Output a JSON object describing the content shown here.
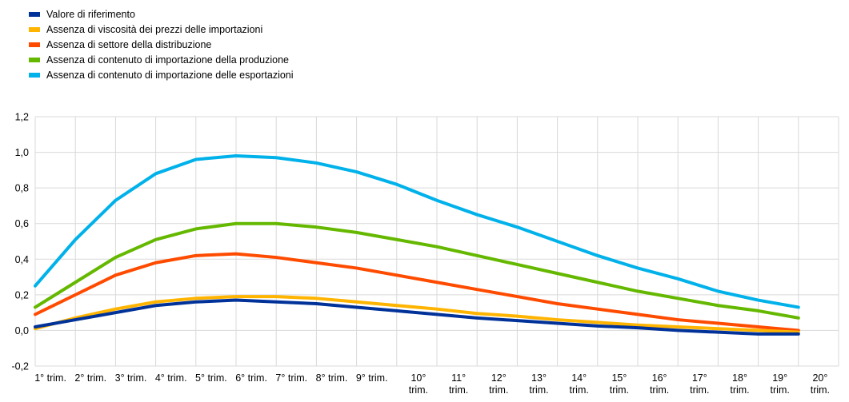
{
  "chart_data": {
    "type": "line",
    "categories": [
      "1° trim.",
      "2° trim.",
      "3° trim.",
      "4° trim.",
      "5° trim.",
      "6° trim.",
      "7° trim.",
      "8° trim.",
      "9° trim.",
      "10° trim.",
      "11° trim.",
      "12° trim.",
      "13° trim.",
      "14° trim.",
      "15° trim.",
      "16° trim.",
      "17° trim.",
      "18° trim.",
      "19° trim.",
      "20° trim."
    ],
    "ylim": [
      -0.2,
      1.2
    ],
    "yticks": [
      "-0,2",
      "0,0",
      "0,2",
      "0,4",
      "0,6",
      "0,8",
      "1,0",
      "1,2"
    ],
    "grid": true,
    "legend_position": "top-left",
    "series": [
      {
        "name": "Valore di riferimento",
        "color": "#003299",
        "values": [
          0.02,
          0.06,
          0.1,
          0.14,
          0.16,
          0.17,
          0.16,
          0.15,
          0.13,
          0.11,
          0.09,
          0.07,
          0.055,
          0.04,
          0.025,
          0.015,
          0.0,
          -0.01,
          -0.02,
          -0.02
        ]
      },
      {
        "name": "Assenza di viscosità dei prezzi delle importazioni",
        "color": "#FFB400",
        "values": [
          0.01,
          0.07,
          0.12,
          0.16,
          0.18,
          0.19,
          0.19,
          0.18,
          0.16,
          0.14,
          0.12,
          0.095,
          0.08,
          0.06,
          0.045,
          0.03,
          0.02,
          0.01,
          0.0,
          -0.01
        ]
      },
      {
        "name": "Assenza di settore della distribuzione",
        "color": "#FF4B00",
        "values": [
          0.09,
          0.2,
          0.31,
          0.38,
          0.42,
          0.43,
          0.41,
          0.38,
          0.35,
          0.31,
          0.27,
          0.23,
          0.19,
          0.15,
          0.12,
          0.09,
          0.06,
          0.04,
          0.02,
          0.0
        ]
      },
      {
        "name": "Assenza di contenuto  di importazione della produzione",
        "color": "#65B800",
        "values": [
          0.13,
          0.27,
          0.41,
          0.51,
          0.57,
          0.6,
          0.6,
          0.58,
          0.55,
          0.51,
          0.47,
          0.42,
          0.37,
          0.32,
          0.27,
          0.22,
          0.18,
          0.14,
          0.11,
          0.07
        ]
      },
      {
        "name": "Assenza di contenuto  di importazione delle esportazioni",
        "color": "#00B1EA",
        "values": [
          0.25,
          0.51,
          0.73,
          0.88,
          0.96,
          0.98,
          0.97,
          0.94,
          0.89,
          0.82,
          0.73,
          0.65,
          0.58,
          0.5,
          0.42,
          0.35,
          0.29,
          0.22,
          0.17,
          0.13
        ]
      }
    ]
  }
}
